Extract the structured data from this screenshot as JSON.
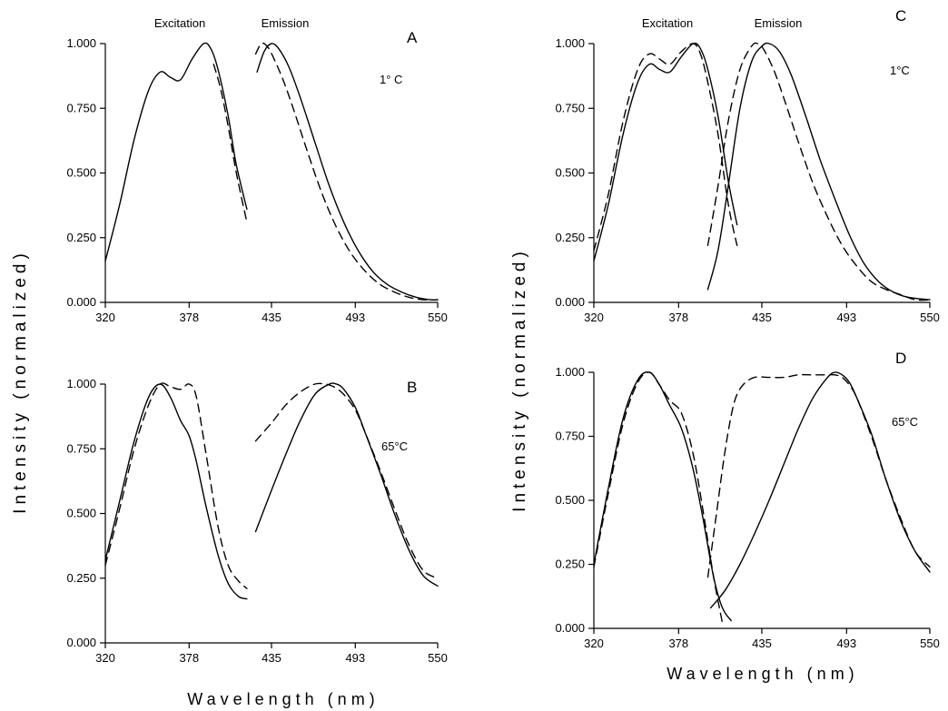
{
  "figure": {
    "ylabel": "Intensity (normalized)",
    "xlabel": "Wavelength (nm)"
  },
  "chart_data": [
    {
      "type": "line",
      "panel_label": "A",
      "annotation": "1° C",
      "column_labels": [
        "Excitation",
        "Emission"
      ],
      "xticks": [
        "320",
        "378",
        "435",
        "493",
        "550"
      ],
      "yticks": [
        "0.000",
        "0.250",
        "0.500",
        "0.750",
        "1.000"
      ],
      "xlim": [
        320,
        550
      ],
      "ylim": [
        0,
        1
      ],
      "series": [
        {
          "style": "solid",
          "x": [
            320,
            330,
            340,
            350,
            358,
            365,
            372,
            380,
            388,
            393,
            398,
            405,
            410,
            414,
            418
          ],
          "y": [
            0.16,
            0.38,
            0.63,
            0.82,
            0.89,
            0.87,
            0.86,
            0.94,
            1.0,
            0.98,
            0.9,
            0.72,
            0.55,
            0.45,
            0.36
          ]
        },
        {
          "style": "dashed",
          "x": [
            395,
            400,
            405,
            410,
            414,
            418
          ],
          "y": [
            0.92,
            0.82,
            0.68,
            0.52,
            0.41,
            0.31
          ]
        },
        {
          "style": "solid",
          "x": [
            425,
            430,
            435,
            440,
            447,
            455,
            465,
            475,
            485,
            495,
            505,
            515,
            525,
            535,
            545,
            550
          ],
          "y": [
            0.89,
            0.97,
            1.0,
            0.98,
            0.91,
            0.79,
            0.62,
            0.45,
            0.31,
            0.2,
            0.12,
            0.07,
            0.04,
            0.02,
            0.01,
            0.01
          ]
        },
        {
          "style": "dashed",
          "x": [
            424,
            428,
            432,
            436,
            443,
            450,
            460,
            470,
            480,
            490,
            500,
            510,
            520,
            530,
            540,
            550
          ],
          "y": [
            0.96,
            1.0,
            0.99,
            0.95,
            0.86,
            0.75,
            0.58,
            0.42,
            0.29,
            0.19,
            0.12,
            0.07,
            0.04,
            0.02,
            0.01,
            0.01
          ]
        }
      ]
    },
    {
      "type": "line",
      "panel_label": "B",
      "annotation": "65°C",
      "xticks": [
        "320",
        "378",
        "435",
        "493",
        "550"
      ],
      "yticks": [
        "0.000",
        "0.250",
        "0.500",
        "0.750",
        "1.000"
      ],
      "xlim": [
        320,
        550
      ],
      "ylim": [
        0,
        1
      ],
      "series": [
        {
          "style": "solid",
          "x": [
            320,
            330,
            340,
            350,
            358,
            365,
            372,
            378,
            383,
            390,
            398,
            405,
            412,
            418
          ],
          "y": [
            0.32,
            0.55,
            0.78,
            0.95,
            1.0,
            0.95,
            0.86,
            0.8,
            0.7,
            0.52,
            0.34,
            0.23,
            0.18,
            0.17
          ]
        },
        {
          "style": "dashed",
          "x": [
            320,
            330,
            340,
            350,
            358,
            365,
            372,
            378,
            383,
            390,
            398,
            405,
            412,
            418
          ],
          "y": [
            0.3,
            0.52,
            0.75,
            0.92,
            1.0,
            0.99,
            0.98,
            1.0,
            0.95,
            0.72,
            0.45,
            0.3,
            0.24,
            0.21
          ]
        },
        {
          "style": "solid",
          "x": [
            424,
            435,
            445,
            455,
            465,
            475,
            480,
            485,
            493,
            500,
            510,
            520,
            530,
            540,
            550
          ],
          "y": [
            0.43,
            0.59,
            0.73,
            0.86,
            0.96,
            1.0,
            1.0,
            0.98,
            0.91,
            0.81,
            0.66,
            0.5,
            0.36,
            0.26,
            0.22
          ]
        },
        {
          "style": "dashed",
          "x": [
            424,
            435,
            445,
            455,
            465,
            472,
            478,
            485,
            493,
            500,
            510,
            520,
            530,
            540,
            550
          ],
          "y": [
            0.78,
            0.85,
            0.92,
            0.97,
            1.0,
            1.0,
            0.99,
            0.96,
            0.9,
            0.81,
            0.67,
            0.52,
            0.38,
            0.28,
            0.25
          ]
        }
      ]
    },
    {
      "type": "line",
      "panel_label": "C",
      "annotation": "1°C",
      "column_labels": [
        "Excitation",
        "Emission"
      ],
      "xticks": [
        "320",
        "378",
        "435",
        "493",
        "550"
      ],
      "yticks": [
        "0.000",
        "0.250",
        "0.500",
        "0.750",
        "1.000"
      ],
      "xlim": [
        320,
        550
      ],
      "ylim": [
        0,
        1
      ],
      "series": [
        {
          "style": "solid",
          "x": [
            320,
            330,
            340,
            350,
            358,
            365,
            372,
            380,
            388,
            393,
            398,
            405,
            412,
            418
          ],
          "y": [
            0.16,
            0.38,
            0.65,
            0.85,
            0.92,
            0.9,
            0.89,
            0.95,
            1.0,
            0.98,
            0.9,
            0.72,
            0.47,
            0.3
          ]
        },
        {
          "style": "dashed",
          "x": [
            320,
            330,
            340,
            350,
            358,
            365,
            372,
            380,
            388,
            393,
            398,
            405,
            412,
            418
          ],
          "y": [
            0.2,
            0.42,
            0.7,
            0.9,
            0.96,
            0.94,
            0.92,
            0.97,
            1.0,
            0.96,
            0.85,
            0.65,
            0.38,
            0.22
          ]
        },
        {
          "style": "solid",
          "x": [
            398,
            405,
            412,
            420,
            428,
            435,
            440,
            447,
            455,
            465,
            475,
            485,
            495,
            505,
            515,
            525,
            535,
            550
          ],
          "y": [
            0.05,
            0.2,
            0.45,
            0.75,
            0.93,
            0.99,
            1.0,
            0.97,
            0.88,
            0.72,
            0.55,
            0.4,
            0.26,
            0.15,
            0.08,
            0.04,
            0.02,
            0.01
          ]
        },
        {
          "style": "dashed",
          "x": [
            398,
            405,
            412,
            420,
            428,
            432,
            436,
            443,
            450,
            460,
            470,
            480,
            490,
            500,
            510,
            520,
            530,
            540,
            550
          ],
          "y": [
            0.22,
            0.45,
            0.7,
            0.9,
            0.99,
            1.0,
            0.98,
            0.9,
            0.79,
            0.62,
            0.46,
            0.33,
            0.22,
            0.14,
            0.08,
            0.05,
            0.03,
            0.01,
            0.01
          ]
        }
      ]
    },
    {
      "type": "line",
      "panel_label": "D",
      "annotation": "65°C",
      "xticks": [
        "320",
        "378",
        "435",
        "493",
        "550"
      ],
      "yticks": [
        "0.000",
        "0.250",
        "0.500",
        "0.750",
        "1.000"
      ],
      "xlim": [
        320,
        550
      ],
      "ylim": [
        0,
        1
      ],
      "series": [
        {
          "style": "solid",
          "x": [
            320,
            330,
            340,
            350,
            358,
            365,
            372,
            380,
            388,
            395,
            402,
            408,
            414
          ],
          "y": [
            0.25,
            0.55,
            0.82,
            0.97,
            1.0,
            0.95,
            0.87,
            0.78,
            0.62,
            0.42,
            0.2,
            0.08,
            0.03
          ]
        },
        {
          "style": "dashed",
          "x": [
            320,
            330,
            340,
            350,
            358,
            365,
            372,
            380,
            388,
            395,
            402,
            408
          ],
          "y": [
            0.24,
            0.53,
            0.8,
            0.96,
            1.0,
            0.95,
            0.89,
            0.84,
            0.68,
            0.45,
            0.2,
            0.02
          ]
        },
        {
          "style": "solid",
          "x": [
            400,
            410,
            420,
            430,
            440,
            450,
            460,
            470,
            480,
            485,
            490,
            495,
            500,
            510,
            520,
            530,
            540,
            550
          ],
          "y": [
            0.08,
            0.15,
            0.25,
            0.37,
            0.5,
            0.64,
            0.78,
            0.9,
            0.98,
            1.0,
            0.99,
            0.96,
            0.9,
            0.76,
            0.58,
            0.42,
            0.3,
            0.22
          ]
        },
        {
          "style": "dashed",
          "x": [
            398,
            404,
            410,
            416,
            422,
            430,
            440,
            450,
            460,
            470,
            480,
            485,
            490,
            495,
            500,
            510,
            520,
            530,
            540,
            550
          ],
          "y": [
            0.2,
            0.45,
            0.7,
            0.88,
            0.95,
            0.98,
            0.98,
            0.98,
            0.99,
            0.99,
            0.99,
            0.99,
            0.98,
            0.95,
            0.9,
            0.75,
            0.58,
            0.43,
            0.3,
            0.24
          ]
        }
      ]
    }
  ]
}
